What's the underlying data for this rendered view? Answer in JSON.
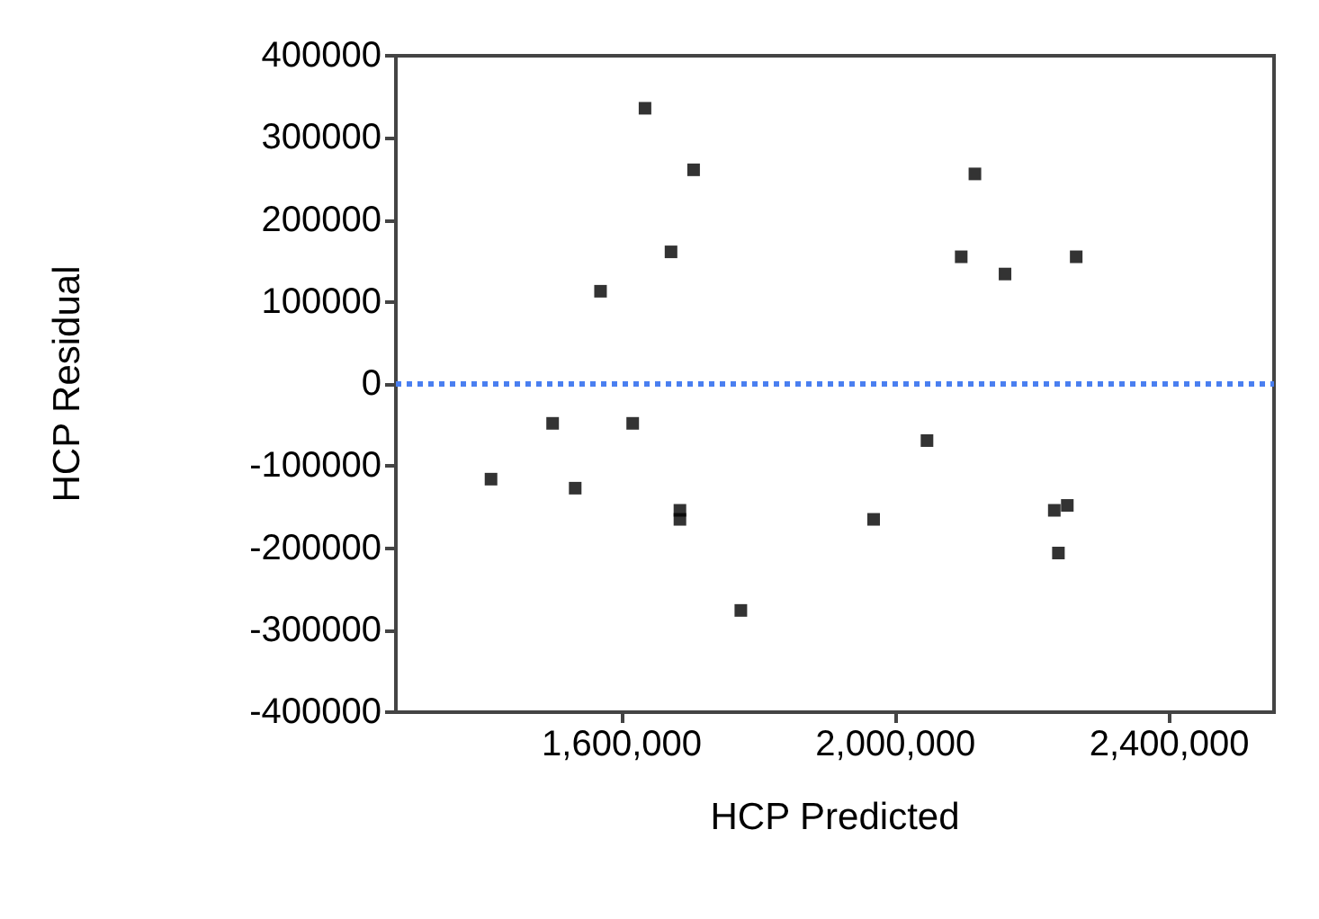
{
  "chart_data": {
    "type": "scatter",
    "xlabel": "HCP Predicted",
    "ylabel": "HCP Residual",
    "x": [
      1634000,
      1705000,
      1672000,
      1569000,
      1499000,
      1616000,
      1409000,
      1532000,
      1685000,
      1685000,
      1774000,
      2116000,
      2096000,
      2160000,
      2264000,
      2046000,
      1968000,
      2232000,
      2251000,
      2238000
    ],
    "series": [
      {
        "color": "#000000",
        "values": [
          336000,
          261000,
          161000,
          113000,
          -48000,
          -48000,
          -116000,
          -127000,
          -154000,
          -165000,
          -276000,
          256000,
          155000,
          134000,
          155000,
          -69000,
          -165000,
          -154000,
          -148000,
          -206000
        ]
      }
    ],
    "xlim": [
      1270000,
      2553000
    ],
    "xticks": [
      {
        "value": 1600000,
        "label": "1,600,000"
      },
      {
        "value": 2000000,
        "label": "2,000,000"
      },
      {
        "value": 2400000,
        "label": "2,400,000"
      }
    ],
    "ylim": [
      -400000,
      400000
    ],
    "yticks": [
      -400000,
      -300000,
      -200000,
      -100000,
      0,
      100000,
      200000,
      300000,
      400000
    ],
    "ref_lines": [
      {
        "axis": "y",
        "value": 0,
        "color": "#4a7ff0",
        "line_style": "dotted"
      }
    ],
    "marker": "square"
  }
}
